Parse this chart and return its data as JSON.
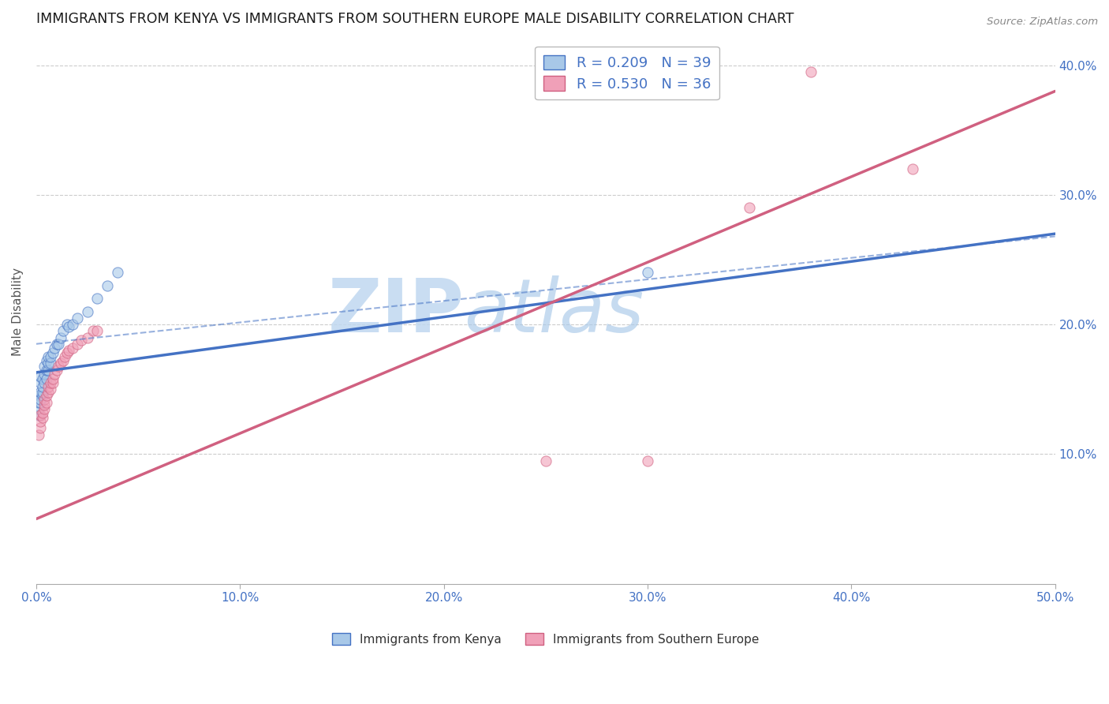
{
  "title": "IMMIGRANTS FROM KENYA VS IMMIGRANTS FROM SOUTHERN EUROPE MALE DISABILITY CORRELATION CHART",
  "source": "Source: ZipAtlas.com",
  "ylabel": "Male Disability",
  "xlim": [
    0.0,
    0.5
  ],
  "ylim": [
    0.0,
    0.42
  ],
  "xtick_vals": [
    0.0,
    0.1,
    0.2,
    0.3,
    0.4,
    0.5
  ],
  "xtick_labels": [
    "0.0%",
    "10.0%",
    "20.0%",
    "30.0%",
    "40.0%",
    "50.0%"
  ],
  "ytick_vals": [
    0.1,
    0.2,
    0.3,
    0.4
  ],
  "ytick_labels": [
    "10.0%",
    "20.0%",
    "30.0%",
    "40.0%"
  ],
  "kenya_R": 0.209,
  "kenya_N": 39,
  "se_R": 0.53,
  "se_N": 36,
  "kenya_scatter_color": "#A8C8E8",
  "se_scatter_color": "#F0A0B8",
  "kenya_line_color": "#4472C4",
  "se_line_color": "#D06080",
  "text_color": "#4472C4",
  "watermark": "ZIPatlas",
  "watermark_color": "#C8DCF0",
  "bg_color": "#FFFFFF",
  "grid_color": "#CCCCCC",
  "title_fontsize": 12.5,
  "label_fontsize": 11,
  "tick_fontsize": 11,
  "legend_fontsize": 13,
  "kenya_x": [
    0.001,
    0.001,
    0.001,
    0.001,
    0.002,
    0.002,
    0.002,
    0.002,
    0.002,
    0.003,
    0.003,
    0.003,
    0.003,
    0.004,
    0.004,
    0.004,
    0.005,
    0.005,
    0.005,
    0.006,
    0.006,
    0.006,
    0.007,
    0.007,
    0.008,
    0.009,
    0.01,
    0.011,
    0.012,
    0.013,
    0.015,
    0.016,
    0.018,
    0.02,
    0.025,
    0.03,
    0.035,
    0.04,
    0.3
  ],
  "kenya_y": [
    0.13,
    0.135,
    0.14,
    0.145,
    0.14,
    0.142,
    0.148,
    0.155,
    0.16,
    0.145,
    0.148,
    0.152,
    0.158,
    0.155,
    0.162,
    0.168,
    0.158,
    0.165,
    0.172,
    0.165,
    0.17,
    0.175,
    0.17,
    0.175,
    0.178,
    0.182,
    0.185,
    0.185,
    0.19,
    0.195,
    0.2,
    0.198,
    0.2,
    0.205,
    0.21,
    0.22,
    0.23,
    0.24,
    0.24
  ],
  "se_x": [
    0.001,
    0.002,
    0.002,
    0.002,
    0.003,
    0.003,
    0.004,
    0.004,
    0.004,
    0.005,
    0.005,
    0.006,
    0.006,
    0.007,
    0.007,
    0.008,
    0.008,
    0.009,
    0.01,
    0.011,
    0.012,
    0.013,
    0.014,
    0.015,
    0.016,
    0.018,
    0.02,
    0.022,
    0.025,
    0.028,
    0.03,
    0.25,
    0.3,
    0.35,
    0.38,
    0.43
  ],
  "se_y": [
    0.115,
    0.12,
    0.125,
    0.13,
    0.128,
    0.132,
    0.135,
    0.138,
    0.142,
    0.14,
    0.145,
    0.148,
    0.152,
    0.15,
    0.155,
    0.155,
    0.158,
    0.162,
    0.165,
    0.168,
    0.17,
    0.172,
    0.175,
    0.178,
    0.18,
    0.182,
    0.185,
    0.188,
    0.19,
    0.195,
    0.195,
    0.095,
    0.095,
    0.29,
    0.395,
    0.32
  ],
  "kenya_line_x0": 0.0,
  "kenya_line_y0": 0.163,
  "kenya_line_x1": 0.5,
  "kenya_line_y1": 0.27,
  "se_line_x0": 0.0,
  "se_line_y0": 0.05,
  "se_line_x1": 0.5,
  "se_line_y1": 0.38,
  "dash_line_x0": 0.0,
  "dash_line_y0": 0.185,
  "dash_line_x1": 0.5,
  "dash_line_y1": 0.268
}
